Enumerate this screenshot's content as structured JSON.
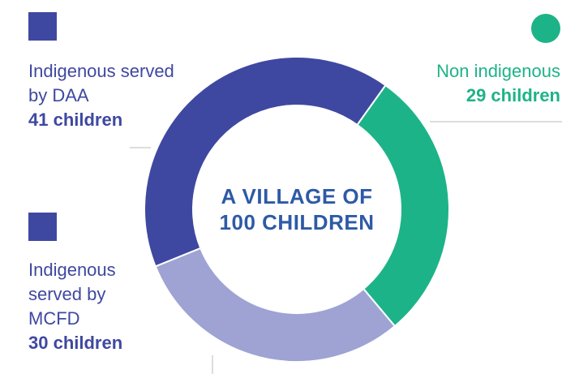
{
  "chart_data": {
    "type": "donut",
    "title": "A VILLAGE OF 100 CHILDREN",
    "categories": [
      "Indigenous served by DAA",
      "Non indigenous",
      "Indigenous served by MCFD"
    ],
    "values": [
      41,
      29,
      30
    ],
    "value_labels": [
      "41 children",
      "29 children",
      "30 children"
    ],
    "colors": [
      "#3f48a0",
      "#1db388",
      "#9ea3d4"
    ]
  }
}
